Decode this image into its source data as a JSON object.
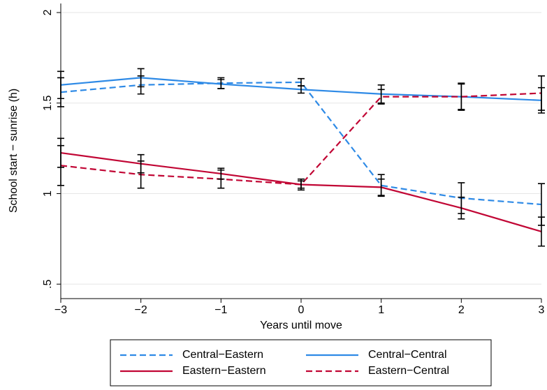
{
  "chart_data": {
    "type": "line",
    "x_label": "Years until move",
    "y_label": "School start − sunrise (h)",
    "x": [
      -3,
      -2,
      -1,
      0,
      1,
      2,
      3
    ],
    "xlim": [
      -3,
      3
    ],
    "xticks": [
      {
        "value": -3,
        "label": "−3"
      },
      {
        "value": -2,
        "label": "−2"
      },
      {
        "value": -1,
        "label": "−1"
      },
      0,
      1,
      2,
      3
    ],
    "ylim": [
      0.42,
      2.05
    ],
    "yticks": [
      {
        "value": 0.5,
        "label": ".5"
      },
      1,
      1.5,
      2
    ],
    "grid": true,
    "legend": "bottom",
    "series": [
      {
        "name": "Central−Eastern",
        "color": "#2e8ae6",
        "style": "dashed",
        "values": [
          1.56,
          1.6,
          1.61,
          1.615,
          1.045,
          0.975,
          0.94
        ],
        "errors": [
          0.08,
          0.05,
          0.03,
          0.02,
          0.06,
          0.085,
          0.115
        ]
      },
      {
        "name": "Central−Central",
        "color": "#2e8ae6",
        "style": "solid",
        "values": [
          1.6,
          1.64,
          1.605,
          1.575,
          1.55,
          1.535,
          1.515
        ],
        "errors": [
          0.075,
          0.05,
          0.025,
          0.02,
          0.05,
          0.07,
          0.07
        ]
      },
      {
        "name": "Eastern−Eastern",
        "color": "#c10534",
        "style": "solid",
        "values": [
          1.225,
          1.165,
          1.11,
          1.05,
          1.035,
          0.92,
          0.79
        ],
        "errors": [
          0.08,
          0.05,
          0.03,
          0.02,
          0.045,
          0.06,
          0.08
        ]
      },
      {
        "name": "Eastern−Central",
        "color": "#c10534",
        "style": "dashed",
        "values": [
          1.155,
          1.105,
          1.08,
          1.05,
          1.535,
          1.535,
          1.555
        ],
        "errors": [
          0.11,
          0.075,
          0.05,
          0.03,
          0.04,
          0.075,
          0.095
        ]
      }
    ]
  }
}
